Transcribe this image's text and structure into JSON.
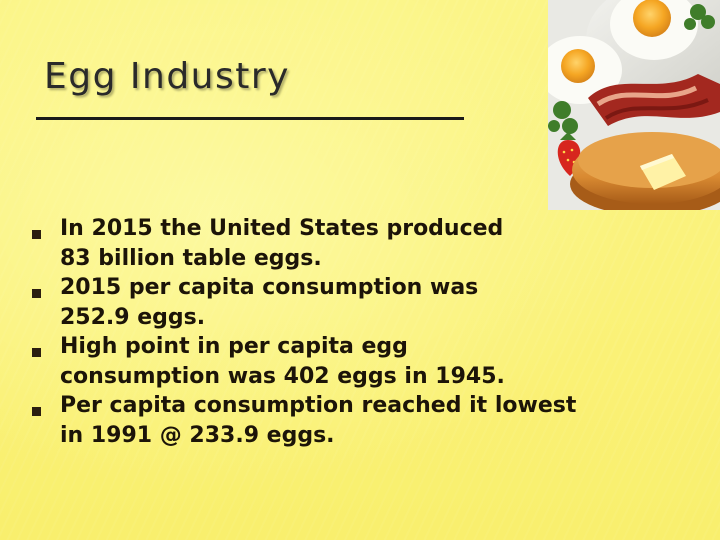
{
  "slide": {
    "title": "Egg Industry",
    "photo_icon": "breakfast-photo-icon",
    "bullets": [
      {
        "text": "In 2015 the United States produced\n83 billion table eggs."
      },
      {
        "text": "2015 per capita consumption was\n252.9  eggs."
      },
      {
        "text": "High point in per capita egg\nconsumption was 402 eggs in 1945."
      },
      {
        "text": "Per capita consumption reached it lowest\nin 1991 @ 233.9 eggs."
      }
    ]
  },
  "colors": {
    "background": "#faf37d",
    "title": "#2a2a2a",
    "text": "#1c1408",
    "bullet_marker": "#2b1e10"
  }
}
